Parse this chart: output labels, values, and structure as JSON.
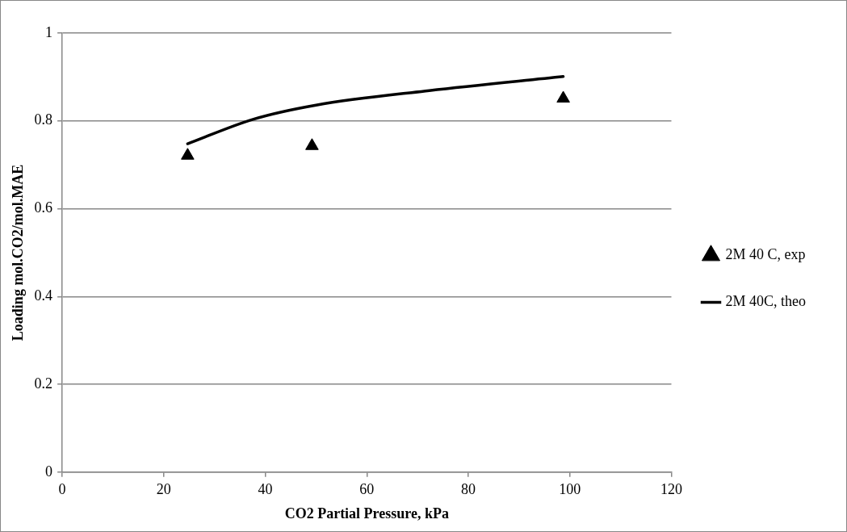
{
  "chart_data": {
    "type": "scatter",
    "xlabel": "CO2 Partial Pressure, kPa",
    "ylabel": "Loading mol.CO2/mol.MAE",
    "xlim": [
      0,
      120
    ],
    "xticks": [
      0,
      20,
      40,
      60,
      80,
      100,
      120
    ],
    "ylim": [
      0,
      1
    ],
    "yticks": [
      0,
      0.2,
      0.4,
      0.6,
      0.8,
      1
    ],
    "grid": "y",
    "legend": "right",
    "series": [
      {
        "name": "2M 40 C, exp",
        "color": "#000000",
        "marker": "triangle",
        "x": [
          24.7,
          49.2,
          98.7
        ],
        "values": [
          0.721,
          0.743,
          0.851
        ]
      },
      {
        "name": "2M 40C, theo",
        "type": "line",
        "color": "#000000",
        "marker": "none",
        "line_style": "solid",
        "x": [
          24.7,
          37.7,
          50,
          72.3,
          98.7
        ],
        "values": [
          0.748,
          0.804,
          0.836,
          0.869,
          0.901
        ]
      }
    ]
  }
}
